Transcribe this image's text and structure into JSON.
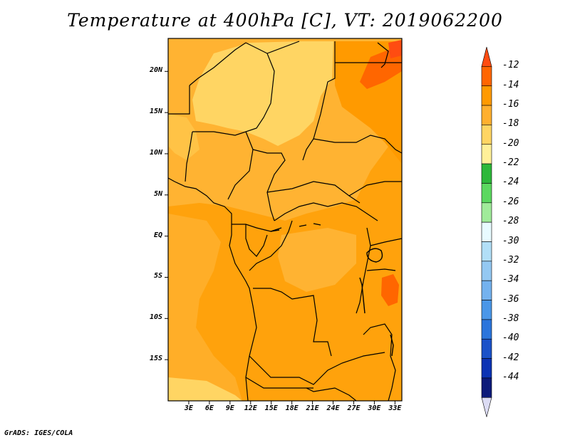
{
  "title": "Temperature at 400hPa [C], VT: 2019062200",
  "footer": "GrADS: IGES/COLA",
  "map": {
    "lon_range": [
      0,
      34
    ],
    "lat_range": [
      -20,
      24
    ],
    "lat_ticks": [
      {
        "value": 20,
        "label": "20N"
      },
      {
        "value": 15,
        "label": "15N"
      },
      {
        "value": 10,
        "label": "10N"
      },
      {
        "value": 5,
        "label": "5N"
      },
      {
        "value": 0,
        "label": "EQ"
      },
      {
        "value": -5,
        "label": "5S"
      },
      {
        "value": -10,
        "label": "10S"
      },
      {
        "value": -15,
        "label": "15S"
      }
    ],
    "lon_ticks": [
      {
        "value": 3,
        "label": "3E"
      },
      {
        "value": 6,
        "label": "6E"
      },
      {
        "value": 9,
        "label": "9E"
      },
      {
        "value": 12,
        "label": "12E"
      },
      {
        "value": 15,
        "label": "15E"
      },
      {
        "value": 18,
        "label": "18E"
      },
      {
        "value": 21,
        "label": "21E"
      },
      {
        "value": 24,
        "label": "24E"
      },
      {
        "value": 27,
        "label": "27E"
      },
      {
        "value": 30,
        "label": "30E"
      },
      {
        "value": 33,
        "label": "33E"
      }
    ]
  },
  "colorbar": {
    "levels": [
      "-12",
      "-14",
      "-16",
      "-18",
      "-20",
      "-22",
      "-24",
      "-26",
      "-28",
      "-30",
      "-32",
      "-34",
      "-36",
      "-38",
      "-40",
      "-42",
      "-44"
    ],
    "colors": [
      "#ff4c11",
      "#ff6600",
      "#ff9a00",
      "#ffb02f",
      "#ffd563",
      "#fff099",
      "#2db83a",
      "#5bd85f",
      "#a0eb9a",
      "#e8fbff",
      "#b2dff7",
      "#94c8f2",
      "#74b2ee",
      "#4a97e8",
      "#2b75dc",
      "#1b52c9",
      "#0c33b4",
      "#0d1b7a",
      "#dcdcf4"
    ]
  }
}
